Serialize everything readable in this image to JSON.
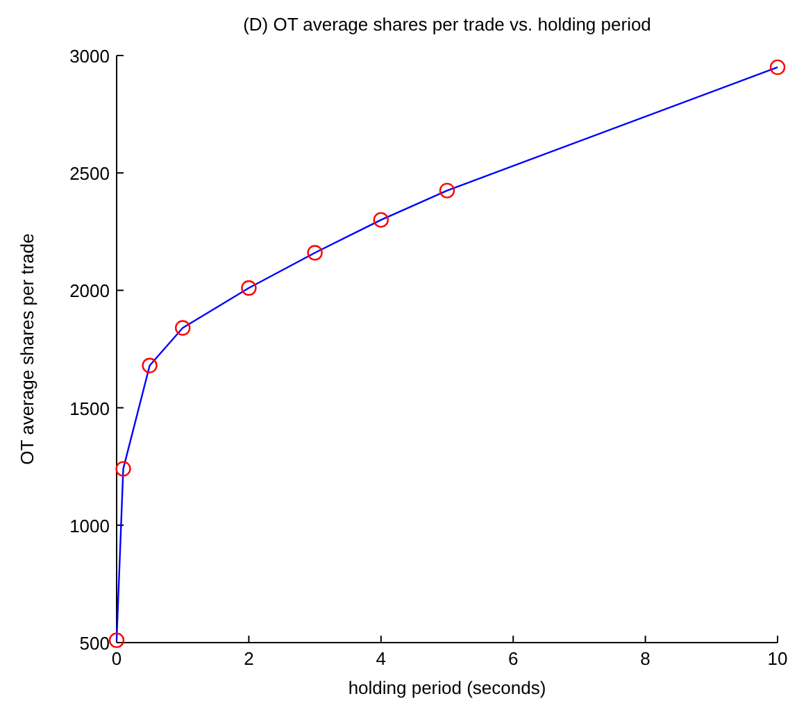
{
  "chart_data": {
    "type": "line",
    "title": "(D) OT average shares per trade vs. holding period",
    "xlabel": "holding period (seconds)",
    "ylabel": "OT average shares per trade",
    "x": [
      0,
      0.1,
      0.5,
      1,
      2,
      3,
      4,
      5,
      10
    ],
    "series": [
      {
        "color": "#0000ff",
        "colors": [
          "#ff0000",
          "#ff0000",
          "#ff0000",
          "#ff0000",
          "#ff0000",
          "#ff0000",
          "#ff0000",
          "#ff0000",
          "#ff0000"
        ],
        "values": [
          510,
          1240,
          1680,
          1840,
          2010,
          2160,
          2300,
          2425,
          2950
        ]
      }
    ],
    "xlim": [
      0,
      10
    ],
    "xticks": [
      0,
      2,
      4,
      6,
      8,
      10
    ],
    "ylim": [
      500,
      3000
    ],
    "yticks": [
      500,
      1000,
      1500,
      2000,
      2500,
      3000
    ],
    "marker": "circle",
    "line_style": "solid"
  }
}
